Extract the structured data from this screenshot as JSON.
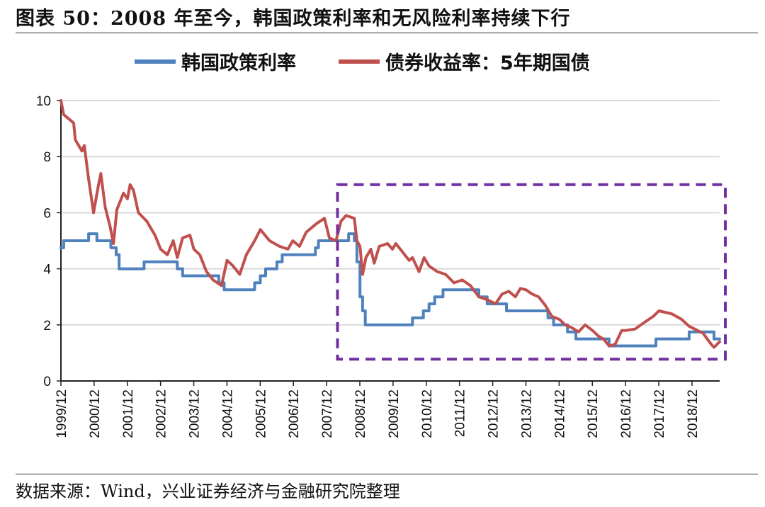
{
  "header": {
    "title": "图表 50：2008 年至今，韩国政策利率和无风险利率持续下行"
  },
  "footer": {
    "source": "数据来源：Wind，兴业证券经济与金融研究院整理"
  },
  "colors": {
    "policy": "#4f81bd",
    "bond": "#c0504d",
    "highlight": "#7030a0",
    "grid": "#d9d9d9"
  },
  "chart_data": {
    "type": "line",
    "ylim": [
      0,
      10
    ],
    "yticks": [
      "0",
      "2",
      "4",
      "6",
      "8",
      "10"
    ],
    "xlim": [
      1999.917,
      2019.75
    ],
    "xticks": [
      "1999/12",
      "2000/12",
      "2001/12",
      "2002/12",
      "2003/12",
      "2004/12",
      "2005/12",
      "2006/12",
      "2007/12",
      "2008/12",
      "2009/12",
      "2010/12",
      "2011/12",
      "2012/12",
      "2013/12",
      "2014/12",
      "2015/12",
      "2016/12",
      "2017/12",
      "2018/12"
    ],
    "grid": "horizontal",
    "legend_position": "top",
    "highlight_box": {
      "x": [
        2008.5,
        2019.75
      ],
      "y": [
        0.7,
        7.0
      ],
      "style": "dashed"
    },
    "series": [
      {
        "name": "韩国政策利率",
        "color": "#4f81bd",
        "step": true,
        "points": [
          [
            1999.917,
            4.75
          ],
          [
            2000.0,
            5.0
          ],
          [
            2000.75,
            5.25
          ],
          [
            2001.0,
            5.0
          ],
          [
            2001.42,
            4.75
          ],
          [
            2001.58,
            4.5
          ],
          [
            2001.67,
            4.0
          ],
          [
            2002.42,
            4.25
          ],
          [
            2003.42,
            4.0
          ],
          [
            2003.58,
            3.75
          ],
          [
            2004.67,
            3.5
          ],
          [
            2004.83,
            3.25
          ],
          [
            2005.75,
            3.5
          ],
          [
            2005.92,
            3.75
          ],
          [
            2006.08,
            4.0
          ],
          [
            2006.42,
            4.25
          ],
          [
            2006.58,
            4.5
          ],
          [
            2007.58,
            4.75
          ],
          [
            2007.67,
            5.0
          ],
          [
            2008.58,
            5.25
          ],
          [
            2008.75,
            5.0
          ],
          [
            2008.83,
            4.25
          ],
          [
            2008.92,
            3.0
          ],
          [
            2009.0,
            2.5
          ],
          [
            2009.08,
            2.0
          ],
          [
            2010.5,
            2.25
          ],
          [
            2010.83,
            2.5
          ],
          [
            2011.0,
            2.75
          ],
          [
            2011.17,
            3.0
          ],
          [
            2011.42,
            3.25
          ],
          [
            2012.5,
            3.0
          ],
          [
            2012.75,
            2.75
          ],
          [
            2013.33,
            2.5
          ],
          [
            2014.58,
            2.25
          ],
          [
            2014.75,
            2.0
          ],
          [
            2015.17,
            1.75
          ],
          [
            2015.42,
            1.5
          ],
          [
            2016.42,
            1.25
          ],
          [
            2017.83,
            1.5
          ],
          [
            2018.83,
            1.75
          ],
          [
            2019.58,
            1.5
          ],
          [
            2019.75,
            1.5
          ]
        ]
      },
      {
        "name": "债券收益率：5年期国债",
        "color": "#c0504d",
        "step": false,
        "points": [
          [
            1999.917,
            10.0
          ],
          [
            2000.0,
            9.5
          ],
          [
            2000.3,
            9.2
          ],
          [
            2000.35,
            8.6
          ],
          [
            2000.55,
            8.2
          ],
          [
            2000.62,
            8.4
          ],
          [
            2000.75,
            7.2
          ],
          [
            2000.9,
            6.0
          ],
          [
            2001.05,
            7.0
          ],
          [
            2001.12,
            7.4
          ],
          [
            2001.25,
            6.2
          ],
          [
            2001.4,
            5.5
          ],
          [
            2001.5,
            4.9
          ],
          [
            2001.6,
            6.1
          ],
          [
            2001.8,
            6.7
          ],
          [
            2001.92,
            6.5
          ],
          [
            2002.0,
            7.0
          ],
          [
            2002.1,
            6.8
          ],
          [
            2002.25,
            6.0
          ],
          [
            2002.5,
            5.7
          ],
          [
            2002.75,
            5.2
          ],
          [
            2002.92,
            4.7
          ],
          [
            2003.12,
            4.5
          ],
          [
            2003.3,
            5.0
          ],
          [
            2003.42,
            4.4
          ],
          [
            2003.58,
            5.1
          ],
          [
            2003.8,
            5.2
          ],
          [
            2003.92,
            4.7
          ],
          [
            2004.1,
            4.5
          ],
          [
            2004.3,
            3.9
          ],
          [
            2004.5,
            3.6
          ],
          [
            2004.75,
            3.4
          ],
          [
            2004.92,
            4.3
          ],
          [
            2005.1,
            4.1
          ],
          [
            2005.3,
            3.8
          ],
          [
            2005.5,
            4.5
          ],
          [
            2005.75,
            5.0
          ],
          [
            2005.92,
            5.4
          ],
          [
            2006.2,
            5.0
          ],
          [
            2006.5,
            4.8
          ],
          [
            2006.75,
            4.7
          ],
          [
            2006.9,
            5.0
          ],
          [
            2007.1,
            4.8
          ],
          [
            2007.3,
            5.3
          ],
          [
            2007.6,
            5.6
          ],
          [
            2007.85,
            5.8
          ],
          [
            2008.0,
            5.1
          ],
          [
            2008.2,
            5.0
          ],
          [
            2008.35,
            5.7
          ],
          [
            2008.5,
            5.9
          ],
          [
            2008.75,
            5.8
          ],
          [
            2008.83,
            5.0
          ],
          [
            2008.92,
            4.8
          ],
          [
            2009.0,
            3.8
          ],
          [
            2009.1,
            4.4
          ],
          [
            2009.25,
            4.7
          ],
          [
            2009.35,
            4.2
          ],
          [
            2009.5,
            4.8
          ],
          [
            2009.75,
            4.9
          ],
          [
            2009.9,
            4.7
          ],
          [
            2010.0,
            4.9
          ],
          [
            2010.2,
            4.6
          ],
          [
            2010.4,
            4.3
          ],
          [
            2010.5,
            4.4
          ],
          [
            2010.7,
            3.9
          ],
          [
            2010.85,
            4.4
          ],
          [
            2011.0,
            4.1
          ],
          [
            2011.25,
            3.9
          ],
          [
            2011.5,
            3.8
          ],
          [
            2011.75,
            3.5
          ],
          [
            2012.0,
            3.6
          ],
          [
            2012.25,
            3.4
          ],
          [
            2012.5,
            3.0
          ],
          [
            2012.75,
            2.9
          ],
          [
            2012.92,
            2.8
          ],
          [
            2013.0,
            2.75
          ],
          [
            2013.2,
            3.1
          ],
          [
            2013.4,
            3.2
          ],
          [
            2013.6,
            3.0
          ],
          [
            2013.75,
            3.3
          ],
          [
            2013.92,
            3.25
          ],
          [
            2014.1,
            3.1
          ],
          [
            2014.3,
            3.0
          ],
          [
            2014.5,
            2.7
          ],
          [
            2014.7,
            2.3
          ],
          [
            2014.92,
            2.2
          ],
          [
            2015.1,
            2.0
          ],
          [
            2015.3,
            1.9
          ],
          [
            2015.5,
            1.75
          ],
          [
            2015.7,
            2.0
          ],
          [
            2015.92,
            1.8
          ],
          [
            2016.1,
            1.6
          ],
          [
            2016.25,
            1.5
          ],
          [
            2016.42,
            1.25
          ],
          [
            2016.6,
            1.3
          ],
          [
            2016.8,
            1.8
          ],
          [
            2016.92,
            1.8
          ],
          [
            2017.2,
            1.85
          ],
          [
            2017.5,
            2.1
          ],
          [
            2017.75,
            2.3
          ],
          [
            2017.92,
            2.5
          ],
          [
            2018.1,
            2.45
          ],
          [
            2018.3,
            2.4
          ],
          [
            2018.6,
            2.2
          ],
          [
            2018.83,
            1.95
          ],
          [
            2019.0,
            1.85
          ],
          [
            2019.25,
            1.7
          ],
          [
            2019.5,
            1.3
          ],
          [
            2019.58,
            1.2
          ],
          [
            2019.75,
            1.4
          ]
        ]
      }
    ]
  }
}
